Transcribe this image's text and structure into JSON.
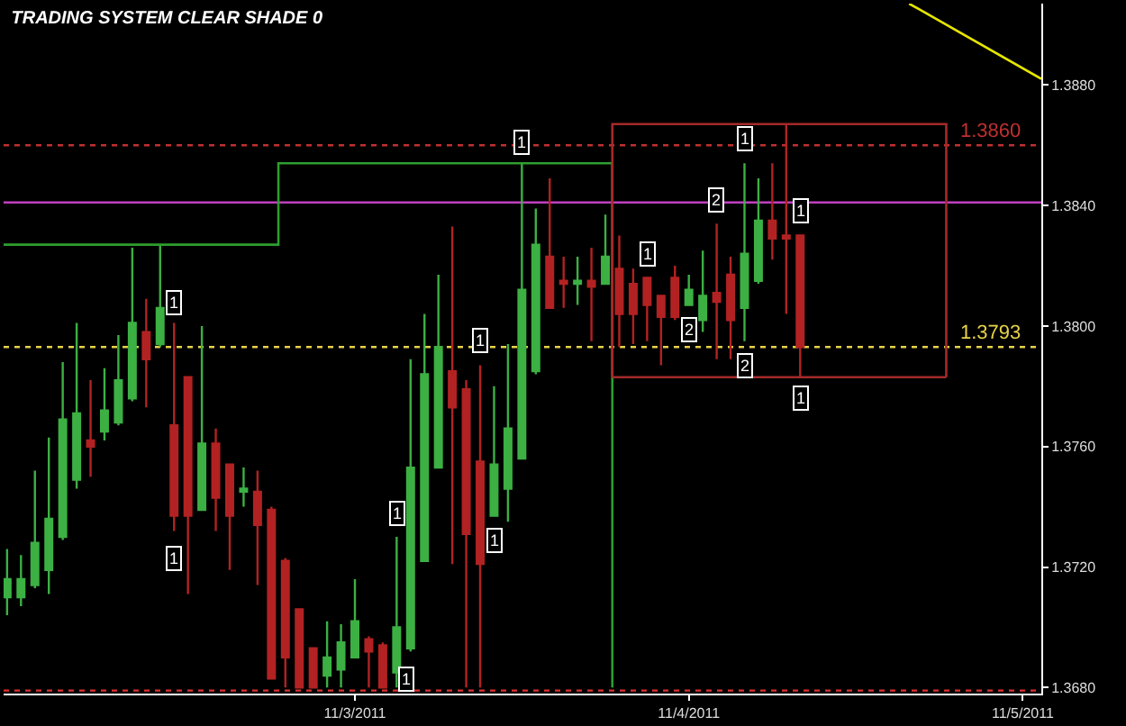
{
  "chart_data": {
    "type": "candlestick",
    "title": "TRADING SYSTEM CLEAR SHADE 0",
    "x": [
      "2011-11-01T23:00",
      "2011-11-02T00:00",
      "2011-11-02T01:00",
      "2011-11-02T02:00",
      "2011-11-02T03:00",
      "2011-11-02T04:00",
      "2011-11-02T05:00",
      "2011-11-02T06:00",
      "2011-11-02T07:00",
      "2011-11-02T08:00",
      "2011-11-02T09:00",
      "2011-11-02T10:00",
      "2011-11-02T11:00",
      "2011-11-02T12:00",
      "2011-11-02T13:00",
      "2011-11-02T14:00",
      "2011-11-02T15:00",
      "2011-11-02T16:00",
      "2011-11-02T17:00",
      "2011-11-02T18:00",
      "2011-11-02T19:00",
      "2011-11-02T20:00",
      "2011-11-02T21:00",
      "2011-11-02T22:00",
      "2011-11-02T23:00",
      "2011-11-03T00:00",
      "2011-11-03T01:00",
      "2011-11-03T02:00",
      "2011-11-03T03:00",
      "2011-11-03T04:00",
      "2011-11-03T05:00",
      "2011-11-03T06:00",
      "2011-11-03T07:00",
      "2011-11-03T08:00",
      "2011-11-03T09:00",
      "2011-11-03T10:00",
      "2011-11-03T11:00",
      "2011-11-03T12:00",
      "2011-11-03T13:00",
      "2011-11-03T14:00",
      "2011-11-03T15:00",
      "2011-11-03T16:00",
      "2011-11-03T17:00",
      "2011-11-03T18:00",
      "2011-11-03T19:00",
      "2011-11-03T20:00",
      "2011-11-03T21:00",
      "2011-11-03T22:00",
      "2011-11-03T23:00",
      "2011-11-04T00:00",
      "2011-11-04T01:00",
      "2011-11-04T02:00",
      "2011-11-04T03:00",
      "2011-11-04T04:00",
      "2011-11-04T05:00",
      "2011-11-04T06:00",
      "2011-11-04T07:00",
      "2011-11-04T08:00"
    ],
    "ohlc": [
      [
        1.371,
        1.3726,
        1.3704,
        1.3716
      ],
      [
        1.371,
        1.3724,
        1.3707,
        1.3716
      ],
      [
        1.3714,
        1.3752,
        1.3713,
        1.3728
      ],
      [
        1.3719,
        1.3763,
        1.3711,
        1.3736
      ],
      [
        1.373,
        1.3788,
        1.3729,
        1.3769
      ],
      [
        1.3749,
        1.3801,
        1.3746,
        1.3771
      ],
      [
        1.3762,
        1.3782,
        1.375,
        1.376
      ],
      [
        1.3765,
        1.3786,
        1.3762,
        1.3772
      ],
      [
        1.3768,
        1.3797,
        1.3767,
        1.3782
      ],
      [
        1.3776,
        1.3826,
        1.3775,
        1.3801
      ],
      [
        1.3798,
        1.3809,
        1.3773,
        1.3789
      ],
      [
        1.3794,
        1.3827,
        1.3793,
        1.3806
      ],
      [
        1.3767,
        1.3801,
        1.3732,
        1.3737
      ],
      [
        1.3783,
        1.3783,
        1.3711,
        1.3737
      ],
      [
        1.3739,
        1.38,
        1.3739,
        1.3761
      ],
      [
        1.3761,
        1.3766,
        1.3732,
        1.3743
      ],
      [
        1.3754,
        1.3754,
        1.3719,
        1.3737
      ],
      [
        1.3745,
        1.3753,
        1.374,
        1.3746
      ],
      [
        1.3745,
        1.3752,
        1.3714,
        1.3734
      ],
      [
        1.3739,
        1.374,
        1.3683,
        1.3683
      ],
      [
        1.3722,
        1.3723,
        1.368,
        1.369
      ],
      [
        1.3706,
        1.3706,
        1.368,
        1.368
      ],
      [
        1.3693,
        1.3693,
        1.368,
        1.368
      ],
      [
        1.3684,
        1.3702,
        1.368,
        1.369
      ],
      [
        1.3686,
        1.3701,
        1.368,
        1.3695
      ],
      [
        1.369,
        1.3716,
        1.369,
        1.3702
      ],
      [
        1.3696,
        1.3697,
        1.368,
        1.3692
      ],
      [
        1.3694,
        1.3695,
        1.368,
        1.368
      ],
      [
        1.3685,
        1.373,
        1.368,
        1.37
      ],
      [
        1.3693,
        1.3789,
        1.3692,
        1.3753
      ],
      [
        1.3722,
        1.3804,
        1.3722,
        1.3784
      ],
      [
        1.3753,
        1.3817,
        1.3753,
        1.3793
      ],
      [
        1.3785,
        1.3833,
        1.3721,
        1.3773
      ],
      [
        1.3779,
        1.3782,
        1.368,
        1.3731
      ],
      [
        1.3755,
        1.3787,
        1.368,
        1.3721
      ],
      [
        1.3737,
        1.378,
        1.3737,
        1.3754
      ],
      [
        1.3746,
        1.3794,
        1.3735,
        1.3766
      ],
      [
        1.3756,
        1.3854,
        1.3756,
        1.3812
      ],
      [
        1.3785,
        1.3839,
        1.3784,
        1.3827
      ],
      [
        1.3823,
        1.3849,
        1.3806,
        1.3806
      ],
      [
        1.3815,
        1.3823,
        1.3806,
        1.3814
      ],
      [
        1.3814,
        1.3823,
        1.3807,
        1.3815
      ],
      [
        1.3815,
        1.3826,
        1.3795,
        1.3813
      ],
      [
        1.3814,
        1.3837,
        1.3814,
        1.3823
      ],
      [
        1.3819,
        1.383,
        1.3793,
        1.3804
      ],
      [
        1.3814,
        1.3819,
        1.3794,
        1.3804
      ],
      [
        1.3816,
        1.3816,
        1.3795,
        1.3807
      ],
      [
        1.381,
        1.381,
        1.3787,
        1.3803
      ],
      [
        1.3816,
        1.382,
        1.3802,
        1.3803
      ],
      [
        1.3807,
        1.3817,
        1.3807,
        1.3812
      ],
      [
        1.3802,
        1.3825,
        1.3798,
        1.381
      ],
      [
        1.3811,
        1.3834,
        1.3789,
        1.3808
      ],
      [
        1.3817,
        1.3823,
        1.3789,
        1.3802
      ],
      [
        1.3806,
        1.3854,
        1.3795,
        1.3824
      ],
      [
        1.3815,
        1.3849,
        1.3814,
        1.3835
      ],
      [
        1.3835,
        1.3854,
        1.3822,
        1.3829
      ],
      [
        1.383,
        1.3867,
        1.3804,
        1.3829
      ],
      [
        1.383,
        1.383,
        1.3783,
        1.3793
      ]
    ],
    "colors": [
      "#3cb043",
      "#3cb043",
      "#3cb043",
      "#3cb043",
      "#3cb043",
      "#3cb043",
      "#b22222",
      "#3cb043",
      "#3cb043",
      "#3cb043",
      "#b22222",
      "#3cb043",
      "#b22222",
      "#b22222",
      "#3cb043",
      "#b22222",
      "#b22222",
      "#3cb043",
      "#b22222",
      "#b22222",
      "#b22222",
      "#b22222",
      "#b22222",
      "#3cb043",
      "#3cb043",
      "#3cb043",
      "#b22222",
      "#b22222",
      "#3cb043",
      "#3cb043",
      "#3cb043",
      "#3cb043",
      "#b22222",
      "#b22222",
      "#b22222",
      "#3cb043",
      "#3cb043",
      "#3cb043",
      "#3cb043",
      "#b22222",
      "#b22222",
      "#3cb043",
      "#b22222",
      "#3cb043",
      "#b22222",
      "#b22222",
      "#b22222",
      "#b22222",
      "#b22222",
      "#3cb043",
      "#3cb043",
      "#b22222",
      "#b22222",
      "#3cb043",
      "#3cb043",
      "#b22222",
      "#b22222",
      "#b22222"
    ],
    "series": [
      {
        "type": "step",
        "color": "#2e9e2e",
        "x": [
          "2011-11-01T22:45",
          "2011-11-02T18:30",
          "2011-11-03T18:30",
          "2011-11-03T18:30"
        ],
        "values": [
          1.3827,
          1.3854,
          1.3854,
          1.368
        ]
      },
      {
        "type": "step",
        "color": "#a52a2a",
        "x": [
          "2011-11-03T18:30",
          "2011-11-03T18:30",
          "2011-11-04T18:30"
        ],
        "values": [
          1.3783,
          1.3867,
          1.3783
        ]
      },
      {
        "type": "line",
        "color": "#a52a2a",
        "x": [
          "2011-11-03T18:30",
          "2011-11-04T18:30"
        ],
        "values": [
          1.3783,
          1.3783
        ]
      },
      {
        "type": "line",
        "color": "#e6e600",
        "x": [
          "2011-11-04T15:50",
          "2011-11-05T01:20"
        ],
        "values": [
          1.3907,
          1.3882
        ]
      }
    ],
    "ref_lines": [
      {
        "axis": "y",
        "value": 1.3841,
        "label": null,
        "color": "#c040c0",
        "line_style": "solid"
      },
      {
        "axis": "y",
        "value": 1.3793,
        "label": "1.3793",
        "color": "#e6d24a",
        "line_style": "dotted"
      },
      {
        "axis": "y",
        "value": 1.386,
        "label": "1.3860",
        "color": "#c03030",
        "line_style": "dotted"
      },
      {
        "axis": "y",
        "value": 1.3679,
        "label": null,
        "color": "#e03030",
        "line_style": "dotted"
      }
    ],
    "annotations": [
      {
        "text": "1",
        "x": "2011-11-02T11:00",
        "y": 1.3808
      },
      {
        "text": "1",
        "x": "2011-11-02T11:00",
        "y": 1.3723
      },
      {
        "text": "1",
        "x": "2011-11-03T03:00",
        "y": 1.3738
      },
      {
        "text": "1",
        "x": "2011-11-03T03:45",
        "y": 1.3683
      },
      {
        "text": "1",
        "x": "2011-11-03T09:00",
        "y": 1.3795
      },
      {
        "text": "1",
        "x": "2011-11-03T10:00",
        "y": 1.3729
      },
      {
        "text": "1",
        "x": "2011-11-03T12:00",
        "y": 1.3861
      },
      {
        "text": "1",
        "x": "2011-11-03T21:00",
        "y": 1.3824
      },
      {
        "text": "2",
        "x": "2011-11-04T00:00",
        "y": 1.3799
      },
      {
        "text": "2",
        "x": "2011-11-04T02:00",
        "y": 1.3842
      },
      {
        "text": "1",
        "x": "2011-11-04T04:00",
        "y": 1.3862
      },
      {
        "text": "2",
        "x": "2011-11-04T04:00",
        "y": 1.3787
      },
      {
        "text": "1",
        "x": "2011-11-04T08:00",
        "y": 1.3838
      },
      {
        "text": "1",
        "x": "2011-11-04T08:00",
        "y": 1.3776
      }
    ],
    "xlim": [
      "2011-11-01T22:45",
      "2011-11-05T01:20"
    ],
    "xticks": [
      {
        "value": "2011-11-03",
        "label": "11/3/2011"
      },
      {
        "value": "2011-11-04",
        "label": "11/4/2011"
      },
      {
        "value": "2011-11-05",
        "label": "11/5/2011"
      }
    ],
    "ylim": [
      1.3678,
      1.3907
    ],
    "yticks": [
      {
        "value": 1.368,
        "label": "1.3680"
      },
      {
        "value": 1.372,
        "label": "1.3720"
      },
      {
        "value": 1.376,
        "label": "1.3760"
      },
      {
        "value": 1.38,
        "label": "1.3800"
      },
      {
        "value": 1.384,
        "label": "1.3840"
      },
      {
        "value": 1.388,
        "label": "1.3880"
      }
    ],
    "grid": false
  }
}
